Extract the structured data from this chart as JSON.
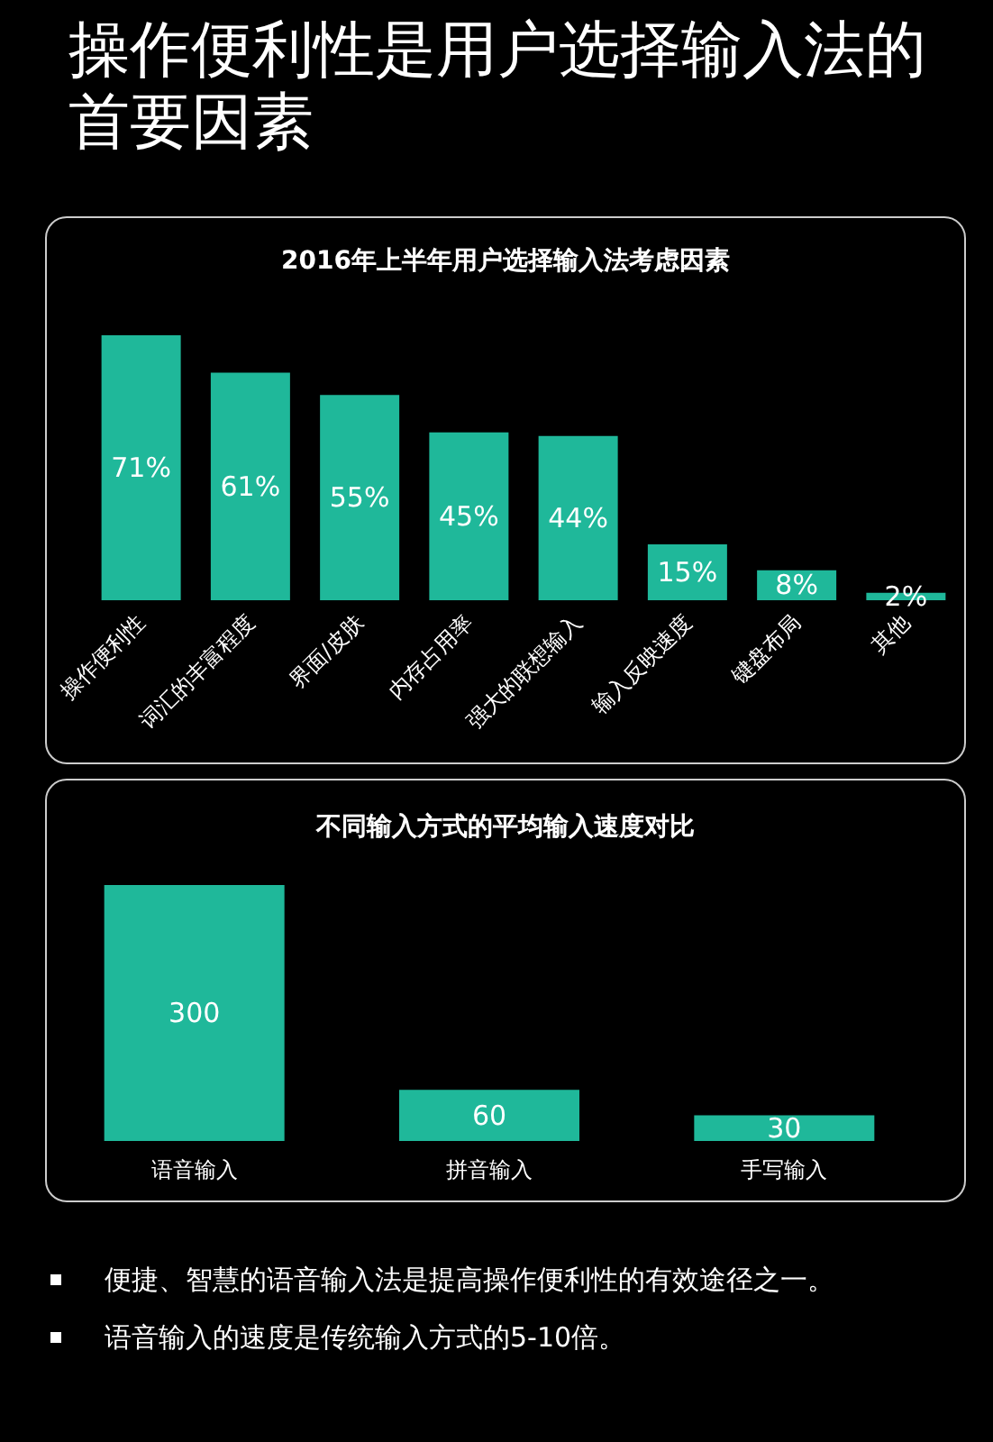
{
  "chart_data": [
    {
      "type": "bar",
      "title": "操作便利性是用户选择输入法的首要因素",
      "subtitle": "2016年上半年用户选择输入法考虑因素",
      "categories": [
        "操作便利性",
        "词汇的丰富程度",
        "界面/皮肤",
        "内存占用率",
        "强大的联想输入",
        "输入反映速度",
        "键盘布局",
        "其他"
      ],
      "values": [
        71,
        61,
        55,
        45,
        44,
        15,
        8,
        2
      ],
      "value_labels": [
        "71%",
        "61%",
        "55%",
        "45%",
        "44%",
        "15%",
        "8%",
        "2%"
      ],
      "color": "#1fb89a"
    },
    {
      "type": "bar",
      "title": "不同输入方式的平均输入速度对比",
      "categories": [
        "语音输入",
        "拼音输入",
        "手写输入"
      ],
      "values": [
        300,
        60,
        30
      ],
      "data_labels": true,
      "color": "#1fb89a",
      "annotations": [
        "便捷、智慧的语音输入法是提高操作便利性的有效途径之一。",
        "语音输入的速度是传统输入方式的5-10倍。"
      ]
    }
  ]
}
